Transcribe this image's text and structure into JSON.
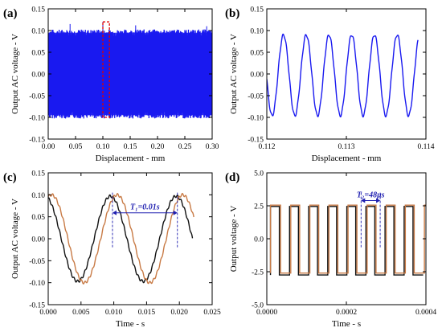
{
  "colors": {
    "blue": "#1a1af0",
    "black": "#111111",
    "orange": "#c87a45",
    "red": "#e00000",
    "pink": "#ff9f9f",
    "annot": "#1f1fb0"
  },
  "chart_data": [
    {
      "id": "a",
      "panel_label": "(a)",
      "type": "line",
      "xlabel": "Displacement - mm",
      "ylabel": "Output AC voltage - V",
      "xlim": [
        0,
        0.3
      ],
      "ylim": [
        -0.15,
        0.15
      ],
      "xticks": [
        "0.00",
        "0.05",
        "0.10",
        "0.15",
        "0.20",
        "0.25",
        "0.30"
      ],
      "yticks": [
        "-0.15",
        "-0.10",
        "-0.05",
        "0.00",
        "0.05",
        "0.10",
        "0.15"
      ],
      "series": [
        {
          "color": "blue",
          "x_range": [
            0.0,
            0.3
          ],
          "amplitude": 0.095,
          "style": "dense-oscillation",
          "peak_spikes": [
            0.115,
            0.12,
            0.112,
            0.11
          ]
        }
      ],
      "highlight_region": {
        "x": [
          0.1,
          0.112
        ],
        "y": [
          -0.1,
          0.12
        ],
        "color": "red"
      }
    },
    {
      "id": "b",
      "panel_label": "(b)",
      "type": "line",
      "xlabel": "Displacement - mm",
      "ylabel": "Output AC voltage - V",
      "xlim": [
        0.112,
        0.114
      ],
      "ylim": [
        -0.15,
        0.15
      ],
      "xticks": [
        "0.112",
        "0.113",
        "0.114"
      ],
      "yticks": [
        "-0.15",
        "-0.10",
        "-0.05",
        "0.00",
        "0.05",
        "0.10",
        "0.15"
      ],
      "series": [
        {
          "color": "blue",
          "x_range": [
            0.112,
            0.1139
          ],
          "amplitude": 0.093,
          "offset": -0.003,
          "cycles": 7,
          "phase_x": 0.11221
        }
      ]
    },
    {
      "id": "c",
      "panel_label": "(c)",
      "type": "line",
      "xlabel": "Time - s",
      "ylabel": "Output AC voltage - V",
      "xlim": [
        0,
        0.025
      ],
      "ylim": [
        -0.15,
        0.15
      ],
      "xticks": [
        "0.000",
        "0.005",
        "0.010",
        "0.015",
        "0.020",
        "0.025"
      ],
      "yticks": [
        "-0.15",
        "-0.10",
        "-0.05",
        "0.00",
        "0.05",
        "0.10",
        "0.15"
      ],
      "series": [
        {
          "color": "black",
          "x_range": [
            0.0,
            0.022
          ],
          "amplitude": 0.097,
          "period": 0.01,
          "peak_x": 0.0095
        },
        {
          "color": "orange",
          "x_range": [
            0.0,
            0.0222
          ],
          "amplitude": 0.1,
          "period": 0.01,
          "peak_x": 0.0005
        }
      ],
      "annotation": {
        "text": "T₁=0.01s",
        "x_start": 0.0098,
        "x_end": 0.0197,
        "y": 0.059
      }
    },
    {
      "id": "d",
      "panel_label": "(d)",
      "type": "line",
      "xlabel": "Time - s",
      "ylabel": "Output voltage - V",
      "xlim": [
        0,
        0.0004
      ],
      "ylim": [
        -5.0,
        5.0
      ],
      "xticks": [
        "0.0000",
        "0.0002",
        "0.0004"
      ],
      "yticks": [
        "-5.0",
        "-2.5",
        "0.0",
        "2.5",
        "5.0"
      ],
      "series": [
        {
          "color": "black",
          "style": "square-wave",
          "x_range": [
            9.2e-06,
            0.000393
          ],
          "high": 2.45,
          "low": -2.75,
          "period": 4.8e-05,
          "phase": 9.2e-06
        },
        {
          "color": "orange",
          "style": "square-wave",
          "x_range": [
            9.2e-06,
            0.0004
          ],
          "high": 2.55,
          "low": -2.6,
          "period": 4.8e-05,
          "phase": 1.22e-05
        }
      ],
      "annotation": {
        "text": "T₂=48μs",
        "x_start": 0.000237,
        "x_end": 0.000285,
        "y": 2.9
      }
    }
  ]
}
